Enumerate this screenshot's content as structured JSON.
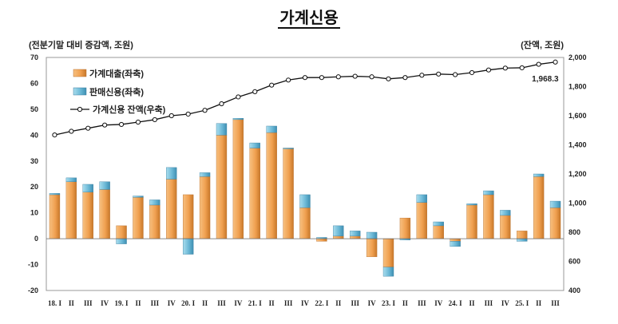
{
  "header": {
    "title": "가계신용",
    "left_unit": "(전분기말 대비 증감액, 조원)",
    "right_unit": "(잔액, 조원)"
  },
  "colors": {
    "loan": "#F0A050",
    "sales": "#6BB8D6",
    "balance_line": "#111111"
  },
  "chart_data": {
    "type": "bar",
    "title": "가계신용",
    "x_ticks": [
      "18. I",
      "II",
      "III",
      "IV",
      "19. I",
      "II",
      "III",
      "IV",
      "20. I",
      "II",
      "III",
      "IV",
      "21. I",
      "II",
      "III",
      "IV",
      "22. I",
      "II",
      "III",
      "IV",
      "23. I",
      "II",
      "III",
      "IV",
      "24. I",
      "II",
      "III",
      "IV",
      "25. I",
      "II",
      "III"
    ],
    "y_left": {
      "ticks": [
        -20,
        -10,
        0,
        10,
        20,
        30,
        40,
        50,
        60,
        70
      ],
      "range": [
        -20,
        70
      ]
    },
    "y_right": {
      "ticks": [
        400,
        600,
        800,
        1000,
        1200,
        1400,
        1600,
        1800,
        2000
      ],
      "range": [
        400,
        2000
      ]
    },
    "series": [
      {
        "name": "가계대출(좌축)",
        "type": "stacked-bar",
        "axis": "left",
        "values": [
          17,
          22,
          18,
          19,
          5,
          16,
          13,
          23,
          17,
          24,
          40,
          46,
          35,
          41,
          35,
          12,
          -1,
          1,
          1,
          -7,
          -11,
          8,
          14,
          5,
          -1,
          13,
          17,
          9,
          3,
          24,
          12
        ]
      },
      {
        "name": "판매신용(좌축)",
        "type": "stacked-bar",
        "axis": "left",
        "values": [
          0.5,
          1.5,
          3,
          3,
          -2,
          0.5,
          2,
          4.5,
          -6,
          1.5,
          4.5,
          0.5,
          2,
          2.5,
          0,
          5,
          0.5,
          4,
          2,
          2.5,
          -3.5,
          -0.5,
          3,
          1.5,
          -2,
          0.5,
          1.5,
          2,
          -1,
          1,
          2.5
        ]
      },
      {
        "name": "가계신용 잔액(우축)",
        "type": "line",
        "axis": "right",
        "values": [
          1468,
          1493,
          1514,
          1536,
          1540,
          1556,
          1573,
          1600,
          1611,
          1637,
          1682,
          1729,
          1765,
          1810,
          1845,
          1862,
          1862,
          1867,
          1871,
          1867,
          1853,
          1862,
          1878,
          1886,
          1882,
          1896,
          1914,
          1927,
          1929,
          1953,
          1968.3
        ]
      }
    ],
    "annotations": [
      "1,968.3"
    ],
    "legend_position": "top-left",
    "grid": false
  }
}
